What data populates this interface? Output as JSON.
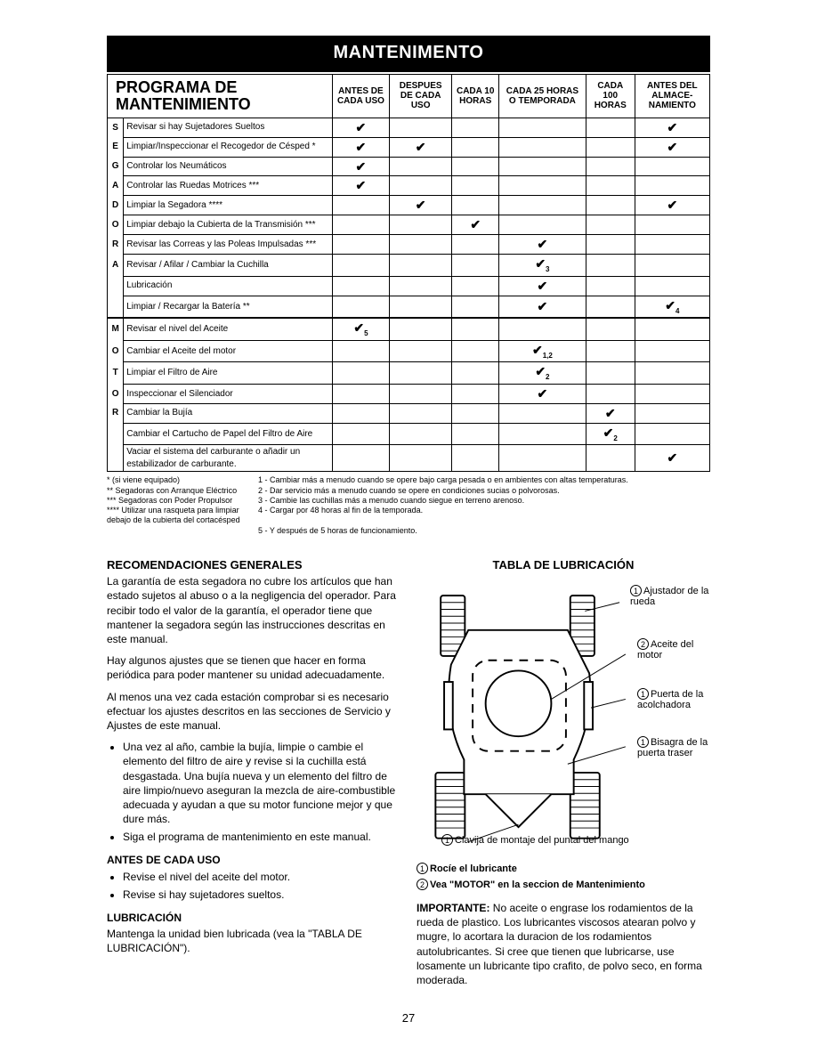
{
  "header": "MANTENIMENTO",
  "table": {
    "title_line1": "PROGRAMA DE",
    "title_line2": "MANTENIMIENTO",
    "columns": [
      "ANTES DE CADA USO",
      "DESPUES DE CADA USO",
      "CADA 10 HORAS",
      "CADA 25 HORAS O TEMPORADA",
      "CADA 100 HORAS",
      "ANTES DEL ALMACE-NAMIENTO"
    ],
    "side1": "SEGADORA",
    "side2": "MOTOR",
    "section1": [
      {
        "task": "Revisar si hay Sujetadores Sueltos",
        "checks": [
          "✔",
          "",
          "",
          "",
          "",
          "✔"
        ]
      },
      {
        "task": "Limpiar/Inspeccionar el Recogedor de Césped *",
        "checks": [
          "✔",
          "✔",
          "",
          "",
          "",
          "✔"
        ]
      },
      {
        "task": "Controlar los Neumáticos",
        "checks": [
          "✔",
          "",
          "",
          "",
          "",
          ""
        ]
      },
      {
        "task": "Controlar las Ruedas Motrices ***",
        "checks": [
          "✔",
          "",
          "",
          "",
          "",
          ""
        ]
      },
      {
        "task": "Limpiar la Segadora ****",
        "checks": [
          "",
          "✔",
          "",
          "",
          "",
          "✔"
        ]
      },
      {
        "task": "Limpiar debajo la Cubierta de la Transmisión ***",
        "checks": [
          "",
          "",
          "✔",
          "",
          "",
          ""
        ]
      },
      {
        "task": "Revisar las Correas y las Poleas Impulsadas ***",
        "checks": [
          "",
          "",
          "",
          "✔",
          "",
          ""
        ]
      },
      {
        "task": "Revisar / Afilar / Cambiar la Cuchilla",
        "checks": [
          "",
          "",
          "",
          "✔3",
          "",
          ""
        ]
      },
      {
        "task": "Lubricación",
        "checks": [
          "",
          "",
          "",
          "✔",
          "",
          ""
        ]
      },
      {
        "task": "Limpiar / Recargar la Batería **",
        "checks": [
          "",
          "",
          "",
          "✔",
          "",
          "✔4"
        ]
      }
    ],
    "section2": [
      {
        "task": "Revisar el nivel del Aceite",
        "checks": [
          "✔5",
          "",
          "",
          "",
          "",
          ""
        ]
      },
      {
        "task": "Cambiar el Aceite del motor",
        "checks": [
          "",
          "",
          "",
          "✔1,2",
          "",
          ""
        ]
      },
      {
        "task": "Limpiar el Filtro de Aire",
        "checks": [
          "",
          "",
          "",
          "✔2",
          "",
          ""
        ]
      },
      {
        "task": "Inspeccionar el Silenciador",
        "checks": [
          "",
          "",
          "",
          "✔",
          "",
          ""
        ]
      },
      {
        "task": "Cambiar la Bujía",
        "checks": [
          "",
          "",
          "",
          "",
          "✔",
          ""
        ]
      },
      {
        "task": "Cambiar el Cartucho de Papel del Filtro de Aire",
        "checks": [
          "",
          "",
          "",
          "",
          "✔2",
          ""
        ]
      },
      {
        "task": "Vaciar el sistema del carburante o añadir un estabilizador de carburante.",
        "checks": [
          "",
          "",
          "",
          "",
          "",
          "✔"
        ]
      }
    ]
  },
  "footnotes": {
    "left": [
      "* (si viene equipado)",
      "** Segadoras con Arranque Eléctrico",
      "*** Segadoras con Poder Propulsor",
      "**** Utilizar una rasqueta para limpiar debajo de la cubierta del cortacésped"
    ],
    "right": [
      "1 - Cambiar más a menudo cuando se opere bajo carga pesada o en ambientes con altas temperaturas.",
      "2 - Dar servicio más a menudo cuando se opere en condiciones sucias o polvorosas.",
      "3 - Cambie las cuchillas más a menudo cuando siegue en terreno arenoso.",
      "4 - Cargar por 48 horas al fin de la temporada.",
      "5 - Y después de 5 horas de funcionamiento."
    ]
  },
  "left_column": {
    "h_reco": "RECOMENDACIONES GENERALES",
    "p1": "La garantía de esta segadora no cubre los artículos que han estado sujetos al abuso o a la negligencia del operador. Para recibir todo el valor de la garantía, el operador tiene que mantener la segadora según las instrucciones descritas en este manual.",
    "p2": "Hay algunos ajustes que se tienen que hacer en forma periódica para poder mantener su unidad adecuadamente.",
    "p3": "Al menos una vez cada estación comprobar si es necesario efectuar los ajustes descritos en las secciones de Servicio y Ajustes de este manual.",
    "li1": "Una vez al año, cambie la bujía, limpie o cambie el elemento del filtro de aire y revise si la cuchilla está desgastada. Una bujía nueva y un elemento del filtro de aire limpio/nuevo aseguran la mezcla de aire-combustible adecuada y ayudan a que su motor funcione mejor y que dure más.",
    "li2": "Siga el programa de mantenimiento en este manual.",
    "h_antes": "ANTES DE CADA USO",
    "li3": "Revise el nivel del aceite del motor.",
    "li4": "Revise si hay sujetadores sueltos.",
    "h_lub": "LUBRICACIÓN",
    "p_lub": "Mantenga la unidad bien lubricada (vea la \"TABLA DE LUBRICACIÓN\")."
  },
  "right_column": {
    "h_tabla": "TABLA DE LUBRICACIÓN",
    "labels": {
      "l1": "Ajustador de la rueda",
      "l2": "Aceite del motor",
      "l3": "Puerta de la acolchadora",
      "l4": "Bisagra de la puerta traser",
      "l5": "Clavija de montaje del puntal del mango"
    },
    "legend1": "Rocíe el lubricante",
    "legend2": "Vea \"MOTOR\" en la seccion de Mantenimiento",
    "important_label": "IMPORTANTE:",
    "important": " No aceite o engrase los rodamientos de la rueda de plastico. Los lubricantes viscosos atearan polvo y mugre, lo acortara la duracion de los rodamientos autolubricantes. Si cree que tienen que lubricarse, use losamente un lubricante tipo crafito, de polvo seco, en forma moderada."
  },
  "page_number": "27",
  "colors": {
    "bg": "#ffffff",
    "text": "#000000",
    "header_bg": "#000000"
  }
}
